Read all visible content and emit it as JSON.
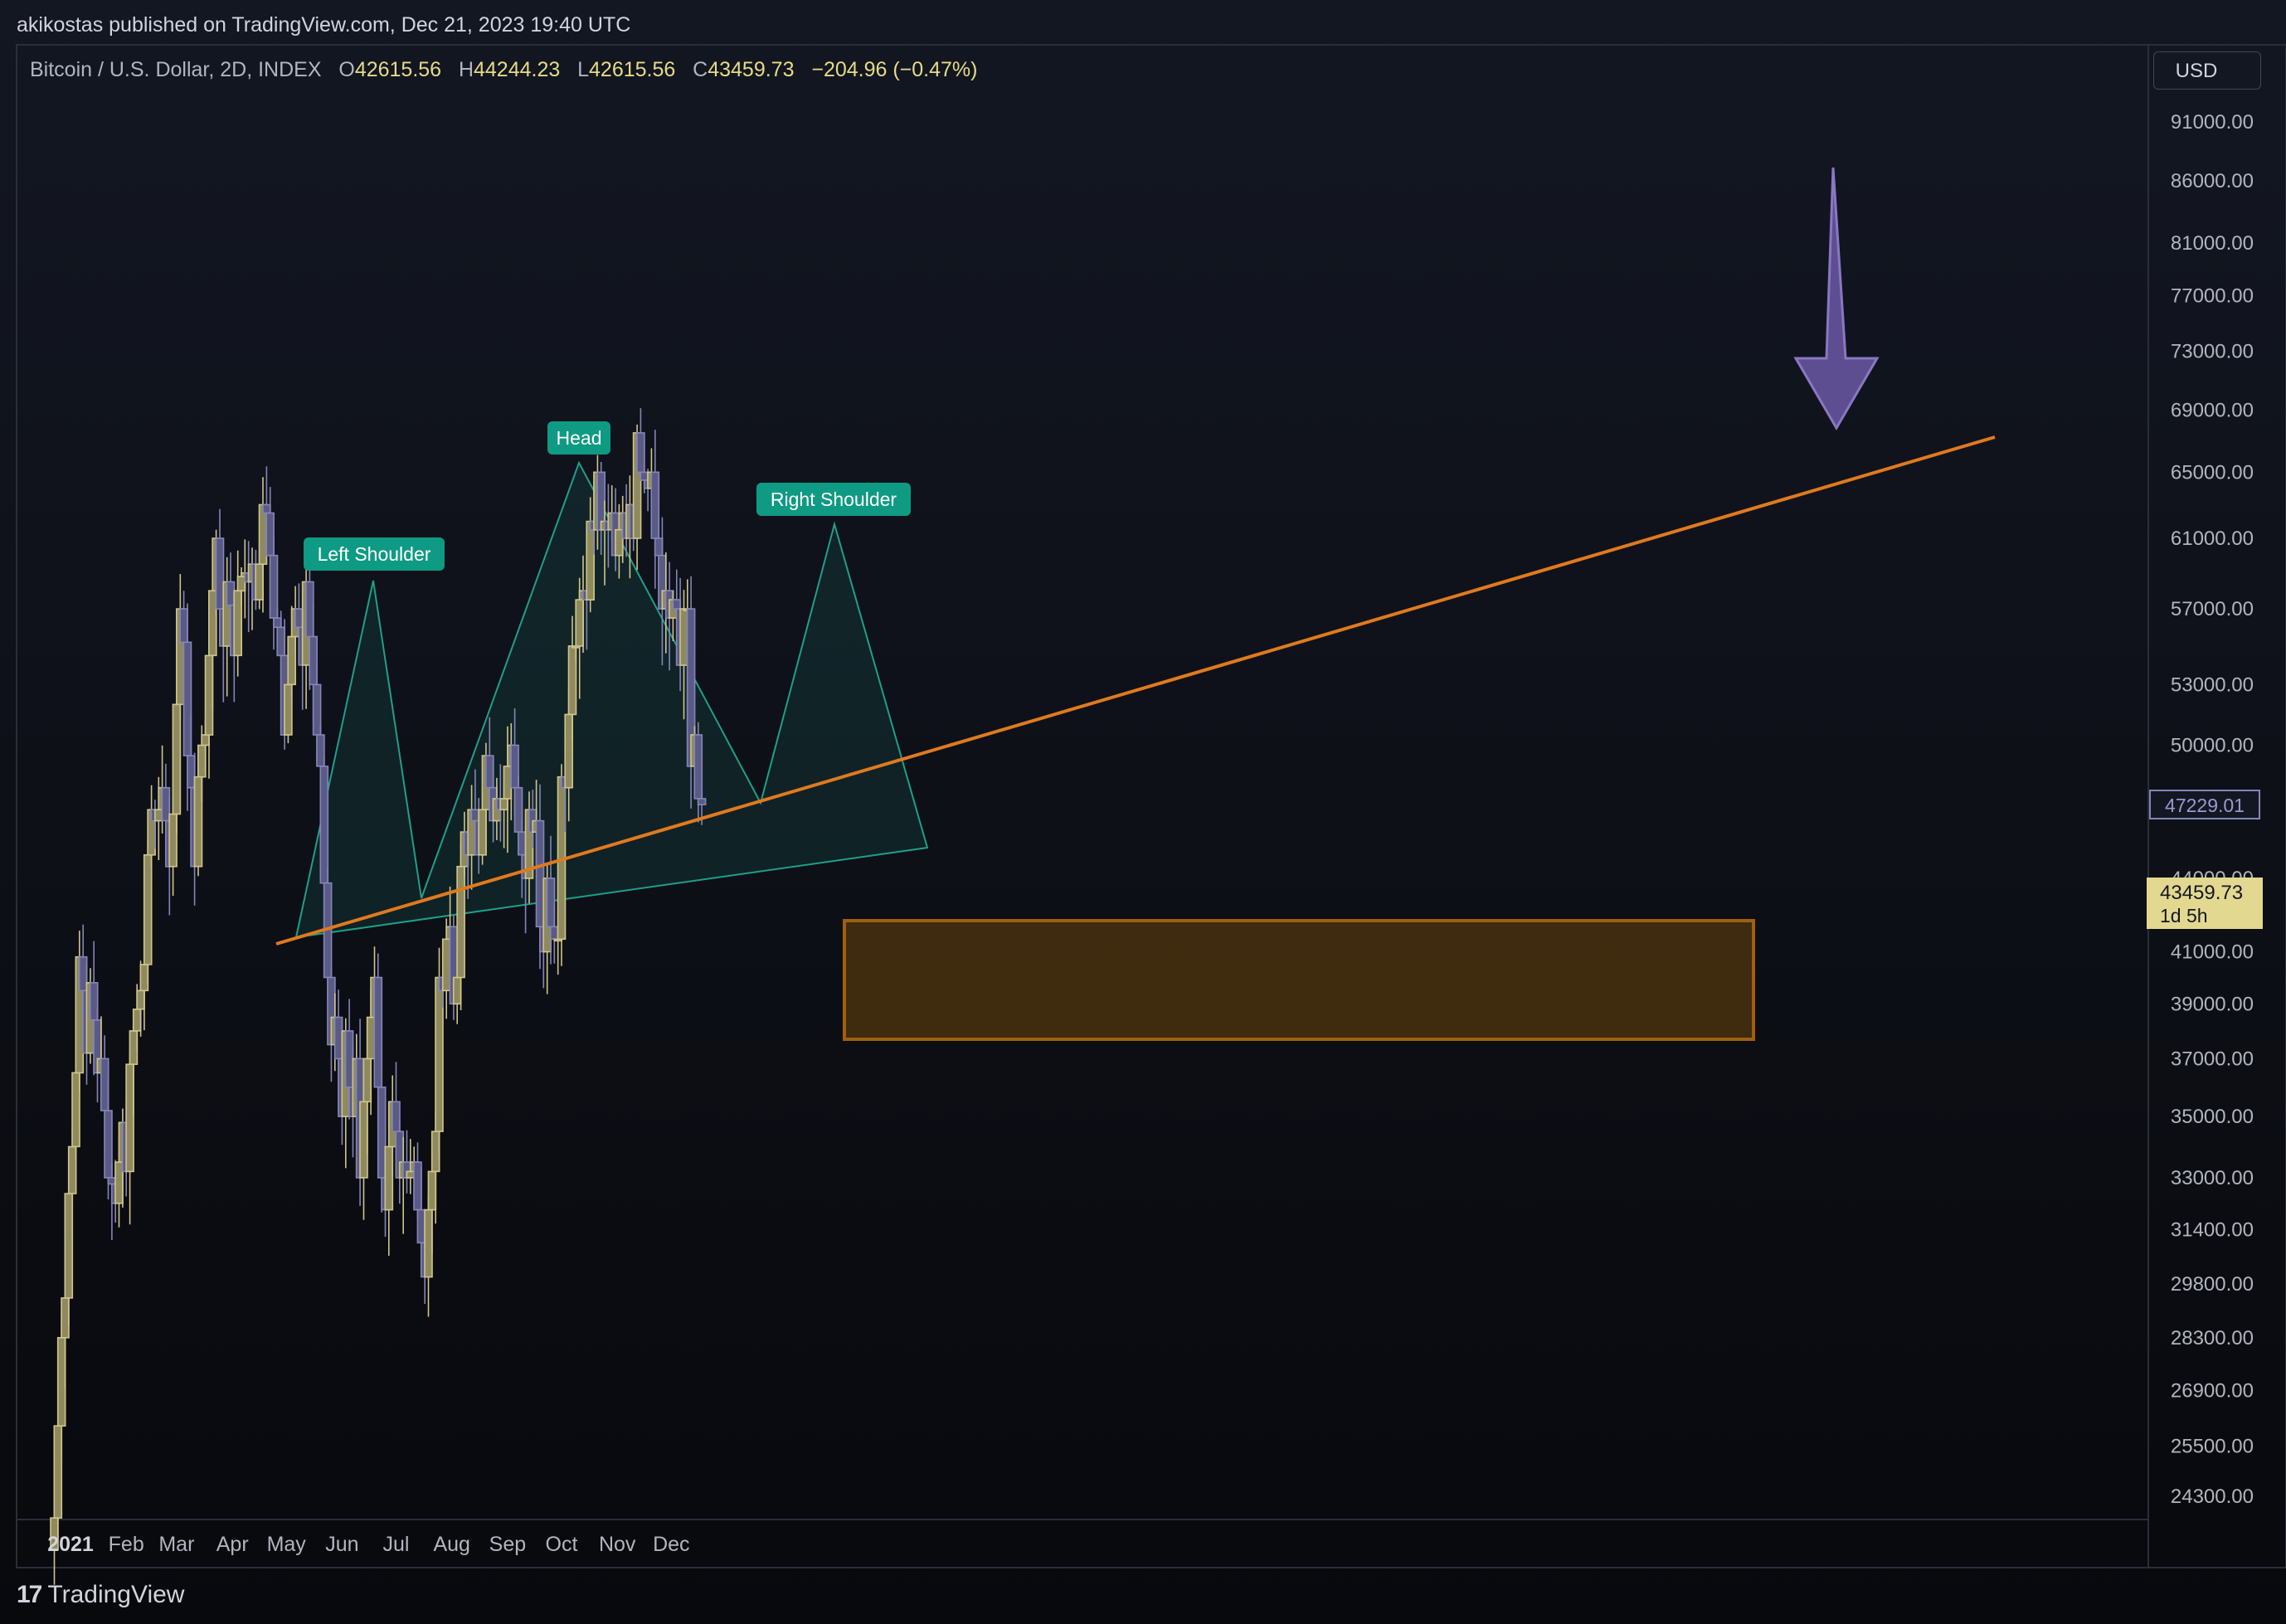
{
  "header": {
    "publisher": "akikostas published on TradingView.com, Dec 21, 2023 19:40 UTC"
  },
  "legend": {
    "symbol": "Bitcoin / U.S. Dollar, 2D, INDEX",
    "o_label": "O",
    "o": "42615.56",
    "h_label": "H",
    "h": "44244.23",
    "l_label": "L",
    "l": "42615.56",
    "c_label": "C",
    "c": "43459.73",
    "change": "−204.96 (−0.47%)"
  },
  "currency_button": "USD",
  "brand": "TradingView",
  "colors": {
    "background": "#131722",
    "up_candle": "#cfc58a",
    "down_candle": "#8585b8",
    "trendline": "#e07a1e",
    "pattern": "#1f9f8a",
    "zone_fill": "#4a320e",
    "zone_border": "#a0600f",
    "arrow": "#6a58a6"
  },
  "chart_data": {
    "type": "candlestick",
    "interval": "2D",
    "price_scale": "log",
    "x_range": [
      "2020-12-23",
      "2021-12-20"
    ],
    "y_range": [
      23500,
      95000
    ],
    "y_ticks": [
      "91000.00",
      "86000.00",
      "81000.00",
      "77000.00",
      "73000.00",
      "69000.00",
      "65000.00",
      "61000.00",
      "57000.00",
      "53000.00",
      "50000.00",
      "44000.00",
      "41000.00",
      "39000.00",
      "37000.00",
      "35000.00",
      "33000.00",
      "31400.00",
      "29800.00",
      "28300.00",
      "26900.00",
      "25500.00",
      "24300.00"
    ],
    "x_ticks": [
      {
        "label": "2021",
        "date": "2021-01-01",
        "bold": true
      },
      {
        "label": "Feb",
        "date": "2021-02-01"
      },
      {
        "label": "Mar",
        "date": "2021-03-01"
      },
      {
        "label": "Apr",
        "date": "2021-04-01"
      },
      {
        "label": "May",
        "date": "2021-05-01"
      },
      {
        "label": "Jun",
        "date": "2021-06-01"
      },
      {
        "label": "Jul",
        "date": "2021-07-01"
      },
      {
        "label": "Aug",
        "date": "2021-08-01"
      },
      {
        "label": "Sep",
        "date": "2021-09-01"
      },
      {
        "label": "Oct",
        "date": "2021-10-01"
      },
      {
        "label": "Nov",
        "date": "2021-11-01"
      },
      {
        "label": "Dec",
        "date": "2021-12-01"
      }
    ],
    "closes": [
      23800,
      26000,
      28300,
      29400,
      32500,
      34000,
      36500,
      40800,
      39500,
      37200,
      39800,
      38400,
      36500,
      37000,
      35200,
      33000,
      32800,
      32200,
      33500,
      34800,
      33200,
      36800,
      38000,
      38800,
      39500,
      40500,
      45000,
      47000,
      46500,
      47000,
      48000,
      46500,
      44500,
      46800,
      52000,
      57000,
      55200,
      49500,
      48000,
      44500,
      48500,
      50000,
      50500,
      54500,
      58000,
      61000,
      57000,
      55000,
      58500,
      57200,
      54500,
      58000,
      58800,
      59000,
      58500,
      59500,
      57500,
      59500,
      63000,
      62500,
      60000,
      56500,
      56000,
      54500,
      50500,
      53000,
      55500,
      57000,
      56000,
      54000,
      58500,
      55500,
      53000,
      50500,
      49000,
      43800,
      40000,
      37500,
      38500,
      37000,
      35000,
      38000,
      36000,
      35000,
      37000,
      33000,
      35500,
      37000,
      38500,
      40000,
      36000,
      33000,
      32000,
      34000,
      35500,
      34500,
      33000,
      33500,
      33000,
      33200,
      33500,
      32000,
      31000,
      30000,
      32000,
      33200,
      34500,
      40000,
      39500,
      41500,
      42000,
      39000,
      40000,
      44500,
      46000,
      45000,
      47000,
      46500,
      45000,
      47000,
      49500,
      48000,
      46500,
      47500,
      47000,
      47500,
      49000,
      50000,
      48000,
      46000,
      45000,
      44000,
      47000,
      46000,
      46500,
      42000,
      41000,
      44000,
      42000,
      41500,
      41500,
      48500,
      48000,
      51500,
      55000,
      55000,
      57500,
      58000,
      57500,
      62000,
      61500,
      65000,
      61500,
      62000,
      61500,
      62500,
      60000,
      61500,
      62500,
      61000,
      63000,
      61000,
      67500,
      65000,
      64500,
      64000,
      65000,
      61000,
      60000,
      57000,
      58000,
      56500,
      57500,
      57000,
      54000,
      57000,
      57000,
      49000,
      50500,
      47500,
      47229
    ]
  }
}
